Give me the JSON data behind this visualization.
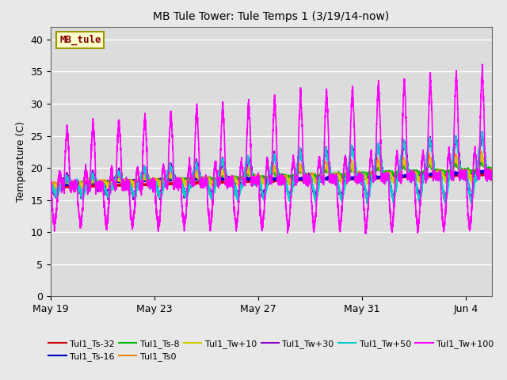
{
  "title": "MB Tule Tower: Tule Temps 1 (3/19/14-now)",
  "ylabel": "Temperature (C)",
  "ylim": [
    0,
    42
  ],
  "yticks": [
    0,
    5,
    10,
    15,
    20,
    25,
    30,
    35,
    40
  ],
  "fig_bg": "#e8e8e8",
  "plot_bg": "#dcdcdc",
  "series": [
    {
      "label": "Tul1_Ts-32",
      "color": "#cc0000",
      "lw": 1.2
    },
    {
      "label": "Tul1_Ts-16",
      "color": "#0000cc",
      "lw": 1.2
    },
    {
      "label": "Tul1_Ts-8",
      "color": "#00bb00",
      "lw": 1.2
    },
    {
      "label": "Tul1_Ts0",
      "color": "#ff8800",
      "lw": 1.2
    },
    {
      "label": "Tul1_Tw+10",
      "color": "#cccc00",
      "lw": 1.2
    },
    {
      "label": "Tul1_Tw+30",
      "color": "#8800cc",
      "lw": 1.2
    },
    {
      "label": "Tul1_Tw+50",
      "color": "#00cccc",
      "lw": 1.2
    },
    {
      "label": "Tul1_Tw+100",
      "color": "#ff00ff",
      "lw": 1.2
    }
  ],
  "label_box": {
    "text": "MB_tule",
    "bg": "#ffffcc",
    "edge": "#999900",
    "text_color": "#880000"
  },
  "x_ticks_labels": [
    "May 19",
    "May 23",
    "May 27",
    "May 31",
    "Jun 4"
  ],
  "x_ticks_pos": [
    0,
    4,
    8,
    12,
    16
  ],
  "n_days": 17,
  "n_pts_per_day": 288
}
